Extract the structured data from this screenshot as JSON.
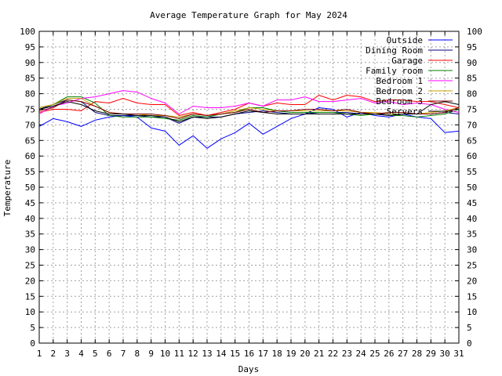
{
  "chart_data": {
    "type": "line",
    "title": "Average Temperature Graph for May 2024",
    "xlabel": "Days",
    "ylabel": "Temperature",
    "xlim": [
      1,
      31
    ],
    "ylim": [
      0,
      100
    ],
    "x_ticks": [
      1,
      2,
      3,
      4,
      5,
      6,
      7,
      8,
      9,
      10,
      11,
      12,
      13,
      14,
      15,
      16,
      17,
      18,
      19,
      20,
      21,
      22,
      23,
      24,
      25,
      26,
      27,
      28,
      29,
      30,
      31
    ],
    "y_ticks": [
      0,
      5,
      10,
      15,
      20,
      25,
      30,
      35,
      40,
      45,
      50,
      55,
      60,
      65,
      70,
      75,
      80,
      85,
      90,
      95,
      100
    ],
    "grid": true,
    "right_axis_labels": true,
    "legend_position": "top-right",
    "x": [
      1,
      2,
      3,
      4,
      5,
      6,
      7,
      8,
      9,
      10,
      11,
      12,
      13,
      14,
      15,
      16,
      17,
      18,
      19,
      20,
      21,
      22,
      23,
      24,
      25,
      26,
      27,
      28,
      29,
      30,
      31
    ],
    "series": [
      {
        "name": "Outside",
        "color": "#0000ff",
        "values": [
          69.5,
          72.0,
          71.0,
          69.5,
          71.5,
          72.5,
          73.0,
          72.5,
          69.0,
          68.0,
          63.5,
          66.5,
          62.5,
          65.5,
          67.5,
          70.5,
          67.0,
          69.5,
          72.0,
          73.5,
          75.5,
          75.0,
          72.5,
          74.0,
          73.0,
          72.5,
          73.5,
          72.5,
          72.0,
          67.5,
          68.0
        ]
      },
      {
        "name": "Dining Room",
        "color": "#000080",
        "values": [
          75.0,
          76.5,
          78.0,
          77.5,
          74.0,
          73.0,
          73.0,
          73.0,
          72.5,
          72.5,
          70.5,
          72.5,
          72.5,
          72.5,
          73.5,
          74.0,
          74.5,
          74.0,
          73.5,
          73.5,
          74.0,
          74.0,
          74.0,
          73.5,
          73.5,
          73.5,
          73.5,
          73.5,
          73.5,
          74.0,
          73.5
        ]
      },
      {
        "name": "Garage",
        "color": "#ff0000",
        "values": [
          74.0,
          75.0,
          75.0,
          74.5,
          77.5,
          77.0,
          78.5,
          77.0,
          76.5,
          76.5,
          73.0,
          74.0,
          73.0,
          74.0,
          75.0,
          77.0,
          76.0,
          77.0,
          76.5,
          76.5,
          79.5,
          78.0,
          79.5,
          79.0,
          77.5,
          78.0,
          78.0,
          77.5,
          77.5,
          76.5,
          75.5
        ]
      },
      {
        "name": "Family room",
        "color": "#008000",
        "values": [
          75.5,
          76.5,
          79.0,
          79.0,
          77.0,
          73.0,
          72.5,
          72.5,
          72.5,
          72.0,
          71.5,
          73.0,
          72.5,
          73.5,
          74.0,
          75.5,
          75.5,
          74.5,
          74.0,
          74.0,
          74.0,
          74.0,
          73.5,
          73.0,
          73.5,
          73.0,
          73.0,
          72.5,
          73.0,
          73.5,
          75.0
        ]
      },
      {
        "name": "Bedroom 1",
        "color": "#ff00ff",
        "values": [
          73.5,
          76.0,
          77.0,
          78.5,
          79.0,
          80.0,
          81.0,
          80.5,
          78.5,
          77.0,
          73.5,
          76.0,
          75.5,
          75.5,
          76.0,
          77.0,
          76.0,
          78.0,
          78.0,
          79.0,
          77.5,
          77.5,
          78.0,
          78.5,
          77.0,
          77.5,
          76.5,
          77.0,
          76.5,
          75.0,
          74.0
        ]
      },
      {
        "name": "Bedroom 2",
        "color": "#c8a000",
        "values": [
          75.5,
          76.5,
          78.5,
          78.5,
          76.0,
          74.0,
          73.5,
          73.5,
          73.0,
          73.0,
          72.5,
          73.5,
          73.0,
          73.5,
          74.5,
          75.5,
          75.0,
          74.5,
          74.5,
          74.5,
          74.5,
          74.5,
          74.5,
          74.0,
          74.0,
          73.5,
          73.5,
          73.5,
          74.0,
          74.5,
          75.5
        ]
      },
      {
        "name": "Bedroom 3",
        "color": "#800000",
        "values": [
          74.5,
          75.5,
          78.0,
          77.5,
          76.0,
          74.0,
          73.5,
          73.5,
          73.5,
          73.0,
          72.0,
          73.5,
          73.0,
          73.5,
          74.0,
          75.0,
          74.0,
          74.5,
          74.5,
          75.0,
          75.0,
          74.5,
          75.0,
          74.0,
          73.5,
          74.0,
          74.0,
          73.5,
          73.5,
          74.0,
          75.5
        ]
      },
      {
        "name": "Servers",
        "color": "#000000",
        "values": [
          75.0,
          76.0,
          77.5,
          76.5,
          74.5,
          73.5,
          73.5,
          73.0,
          73.0,
          72.5,
          71.0,
          72.5,
          72.0,
          72.5,
          73.5,
          74.5,
          74.0,
          73.5,
          73.5,
          73.5,
          73.5,
          73.5,
          73.5,
          73.5,
          73.5,
          73.0,
          73.5,
          73.5,
          76.5,
          77.5,
          76.5
        ]
      }
    ]
  }
}
